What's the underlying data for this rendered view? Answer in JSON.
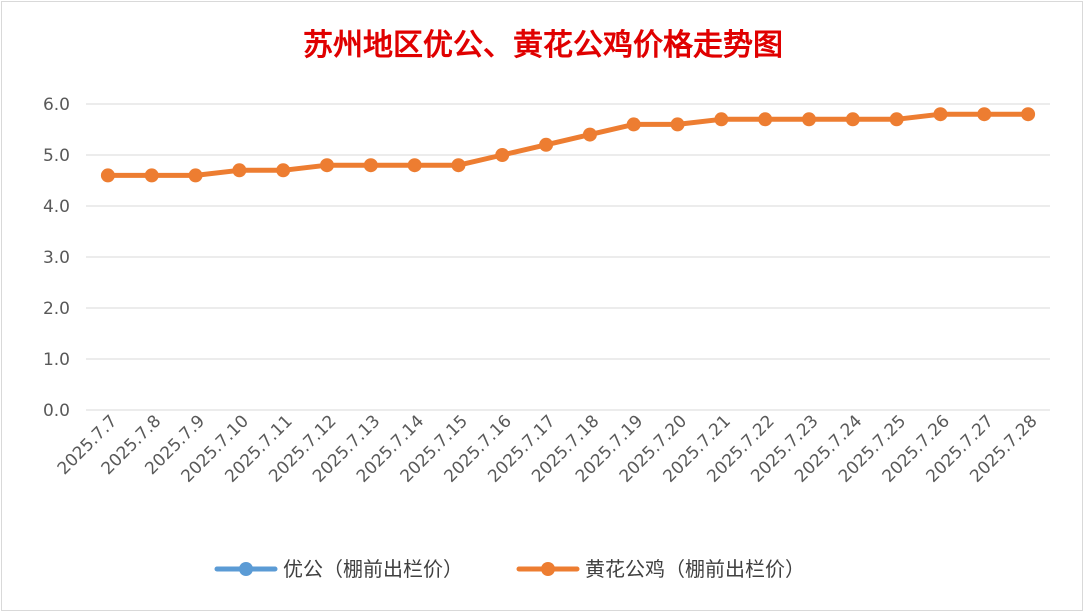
{
  "chart_data": {
    "type": "line",
    "title": "苏州地区优公、黄花公鸡价格走势图",
    "categories": [
      "2025.7.7",
      "2025.7.8",
      "2025.7.9",
      "2025.7.10",
      "2025.7.11",
      "2025.7.12",
      "2025.7.13",
      "2025.7.14",
      "2025.7.15",
      "2025.7.16",
      "2025.7.17",
      "2025.7.18",
      "2025.7.19",
      "2025.7.20",
      "2025.7.21",
      "2025.7.22",
      "2025.7.23",
      "2025.7.24",
      "2025.7.25",
      "2025.7.26",
      "2025.7.27",
      "2025.7.28"
    ],
    "y_ticks": [
      "0.0",
      "1.0",
      "2.0",
      "3.0",
      "4.0",
      "5.0",
      "6.0"
    ],
    "ylim": [
      0,
      6.0
    ],
    "grid": true,
    "legend_position": "bottom",
    "series": [
      {
        "name": "优公（棚前出栏价）",
        "color": "#5b9bd5",
        "values": [
          null,
          null,
          null,
          null,
          null,
          null,
          null,
          null,
          null,
          null,
          null,
          null,
          null,
          null,
          null,
          null,
          null,
          null,
          null,
          null,
          null,
          null
        ]
      },
      {
        "name": "黄花公鸡（棚前出栏价）",
        "color": "#ed7d31",
        "values": [
          4.6,
          4.6,
          4.6,
          4.7,
          4.7,
          4.8,
          4.8,
          4.8,
          4.8,
          5.0,
          5.2,
          5.4,
          5.6,
          5.6,
          5.7,
          5.7,
          5.7,
          5.7,
          5.7,
          5.8,
          5.8,
          5.8
        ]
      }
    ],
    "title_color": "#e00000"
  }
}
